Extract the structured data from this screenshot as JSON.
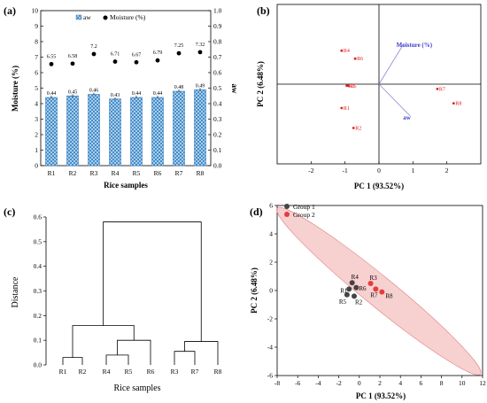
{
  "chart_data": [
    {
      "panel": "(a)",
      "type": "bar",
      "categories": [
        "R1",
        "R2",
        "R3",
        "R4",
        "R5",
        "R6",
        "R7",
        "R8"
      ],
      "xlabel": "Rice samples",
      "ylabel": "Moisture (%)",
      "y2label": "aw",
      "ylim": [
        0,
        10
      ],
      "y2lim": [
        0,
        1
      ],
      "legend": [
        "aw",
        "Moisture (%)"
      ],
      "series": [
        {
          "name": "aw",
          "axis": "right",
          "values": [
            0.44,
            0.45,
            0.46,
            0.43,
            0.44,
            0.44,
            0.48,
            0.49
          ]
        },
        {
          "name": "Moisture (%)",
          "axis": "left",
          "values": [
            6.55,
            6.58,
            7.2,
            6.71,
            6.67,
            6.79,
            7.25,
            7.32
          ]
        }
      ],
      "labels_aw": [
        "0.44",
        "0.45",
        "0.46",
        "0.43",
        "0.44",
        "0.44",
        "0.48",
        "0.49"
      ],
      "labels_moist": [
        "6.55",
        "6.58",
        "7.2",
        "6.71",
        "6.67",
        "6.79",
        "7.25",
        "7.32"
      ],
      "yticks": [
        "0",
        "1",
        "2",
        "3",
        "4",
        "5",
        "6",
        "7",
        "8",
        "9",
        "10"
      ],
      "y2ticks": [
        "0.0",
        "0.1",
        "0.2",
        "0.3",
        "0.4",
        "0.5",
        "0.6",
        "0.7",
        "0.8",
        "0.9",
        "1.0"
      ]
    },
    {
      "panel": "(b)",
      "type": "scatter",
      "xlabel": "PC 1 (93.52%)",
      "ylabel": "PC 2 (6.48%)",
      "xlim": [
        -3,
        3
      ],
      "ylim": [
        -1,
        1
      ],
      "xticks": [
        "-2",
        "-1",
        "0",
        "1",
        "2"
      ],
      "points": [
        {
          "label": "R1",
          "x": -1.1,
          "y": -0.3
        },
        {
          "label": "R2",
          "x": -0.75,
          "y": -0.55
        },
        {
          "label": "R3",
          "x": -0.95,
          "y": -0.02
        },
        {
          "label": "R4",
          "x": -1.1,
          "y": 0.42
        },
        {
          "label": "R5",
          "x": -0.9,
          "y": -0.02
        },
        {
          "label": "R6",
          "x": -0.7,
          "y": 0.32
        },
        {
          "label": "R7",
          "x": 1.72,
          "y": -0.06
        },
        {
          "label": "R8",
          "x": 2.2,
          "y": -0.24
        }
      ],
      "vectors": [
        {
          "label": "Moisture (%)",
          "x": 0.72,
          "y": 0.5
        },
        {
          "label": "aw",
          "x": 0.92,
          "y": -0.4
        }
      ]
    },
    {
      "panel": "(c)",
      "type": "dendrogram",
      "xlabel": "Rice samples",
      "ylabel": "Distance",
      "ylim": [
        0,
        0.6
      ],
      "yticks": [
        "0.0",
        "0.1",
        "0.2",
        "0.3",
        "0.4",
        "0.5",
        "0.6"
      ],
      "leaves": [
        "R1",
        "R2",
        "R4",
        "R5",
        "R6",
        "R3",
        "R7",
        "R8"
      ],
      "merge_heights": {
        "R1_R2": 0.03,
        "R4_R5": 0.04,
        "R45_R6": 0.1,
        "R12_R456": 0.16,
        "R3_R7": 0.055,
        "R37_R8": 0.095,
        "root": 0.58
      }
    },
    {
      "panel": "(d)",
      "type": "scatter",
      "xlabel": "PC 1 (93.52%)",
      "ylabel": "PC 2 (6.48%)",
      "xlim": [
        -8,
        12
      ],
      "ylim": [
        -6,
        6
      ],
      "xticks": [
        "-8",
        "-6",
        "-4",
        "-2",
        "0",
        "2",
        "4",
        "6",
        "8",
        "10",
        "12"
      ],
      "yticks": [
        "-6",
        "-4",
        "-2",
        "0",
        "2",
        "4",
        "6"
      ],
      "legend": [
        "Group 1",
        "Group 2"
      ],
      "series": [
        {
          "name": "Group 1",
          "points": [
            {
              "label": "R1",
              "x": -1.0,
              "y": 0.1
            },
            {
              "label": "R2",
              "x": -0.5,
              "y": -0.4
            },
            {
              "label": "R4",
              "x": -0.7,
              "y": 0.55
            },
            {
              "label": "R5",
              "x": -1.2,
              "y": -0.3
            },
            {
              "label": "R6",
              "x": -0.3,
              "y": 0.2
            }
          ]
        },
        {
          "name": "Group 2",
          "points": [
            {
              "label": "R3",
              "x": 1.1,
              "y": 0.5
            },
            {
              "label": "R7",
              "x": 1.6,
              "y": 0.1
            },
            {
              "label": "R8",
              "x": 2.2,
              "y": -0.1
            }
          ]
        }
      ],
      "colors": {
        "group1": "#444444",
        "group2": "#e63c3c",
        "ellipse": "#f4c0c0"
      }
    }
  ]
}
